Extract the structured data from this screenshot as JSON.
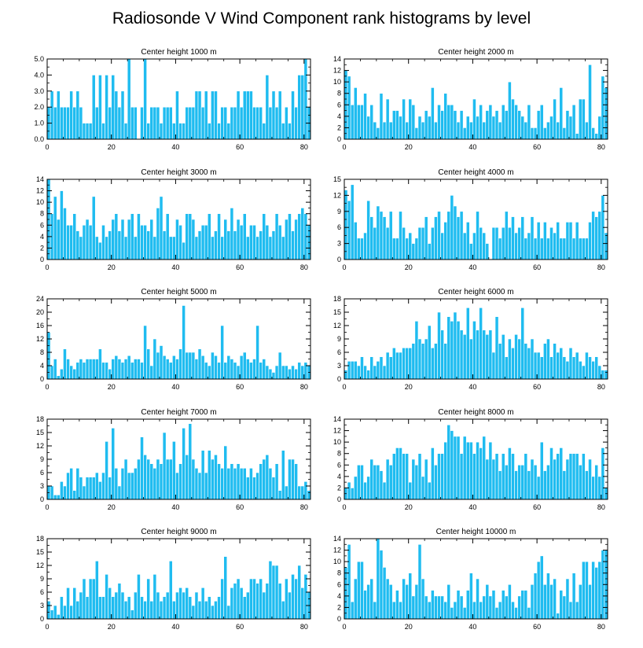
{
  "figure_title": "Radiosonde V Wind Component rank histograms by level",
  "colors": {
    "bar": "#1fbcf0",
    "bar_edge": "#ffffff",
    "axis": "#000000"
  },
  "chart_data": [
    {
      "type": "bar",
      "title": "Center height 1000 m",
      "xlabel": "",
      "ylabel": "",
      "xlim": [
        0,
        82
      ],
      "ylim": [
        0,
        5
      ],
      "xticks": [
        0,
        20,
        40,
        60,
        80
      ],
      "yticks": [
        0,
        1,
        2,
        3,
        4,
        5
      ],
      "ytick_labels": [
        "0.0",
        "1.0",
        "2.0",
        "3.0",
        "4.0",
        "5.0"
      ],
      "values": [
        2,
        3,
        2,
        3,
        2,
        2,
        2,
        3,
        2,
        3,
        2,
        1,
        1,
        1,
        4,
        2,
        4,
        1,
        4,
        2,
        4,
        3,
        2,
        3,
        1,
        5,
        2,
        2,
        0,
        2,
        5,
        1,
        2,
        2,
        2,
        1,
        2,
        2,
        2,
        1,
        3,
        1,
        1,
        2,
        2,
        2,
        3,
        3,
        2,
        3,
        1,
        3,
        3,
        1,
        2,
        2,
        1,
        2,
        2,
        3,
        2,
        3,
        3,
        3,
        2,
        2,
        2,
        1,
        4,
        2,
        3,
        2,
        3,
        1,
        2,
        1,
        3,
        2,
        4,
        4,
        5,
        2
      ]
    },
    {
      "type": "bar",
      "title": "Center height 2000 m",
      "xlabel": "",
      "ylabel": "",
      "xlim": [
        0,
        82
      ],
      "ylim": [
        0,
        14
      ],
      "xticks": [
        0,
        20,
        40,
        60,
        80
      ],
      "yticks": [
        0,
        2,
        4,
        6,
        8,
        10,
        12,
        14
      ],
      "ytick_labels": [
        "0",
        "2",
        "4",
        "6",
        "8",
        "10",
        "12",
        "14"
      ],
      "values": [
        12,
        11,
        6,
        9,
        6,
        6,
        8,
        4,
        6,
        3,
        2,
        8,
        3,
        7,
        3,
        5,
        5,
        4,
        7,
        3,
        7,
        6,
        2,
        4,
        3,
        5,
        4,
        9,
        3,
        6,
        5,
        8,
        6,
        6,
        5,
        3,
        5,
        2,
        4,
        3,
        7,
        4,
        6,
        3,
        5,
        6,
        4,
        5,
        3,
        6,
        5,
        10,
        7,
        6,
        5,
        4,
        3,
        6,
        2,
        2,
        5,
        6,
        2,
        3,
        4,
        7,
        3,
        9,
        2,
        5,
        4,
        6,
        1,
        7,
        7,
        3,
        13,
        2,
        1,
        4,
        11,
        9
      ]
    },
    {
      "type": "bar",
      "title": "Center height 3000 m",
      "xlabel": "",
      "ylabel": "",
      "xlim": [
        0,
        82
      ],
      "ylim": [
        0,
        14
      ],
      "xticks": [
        0,
        20,
        40,
        60,
        80
      ],
      "yticks": [
        0,
        2,
        4,
        6,
        8,
        10,
        12,
        14
      ],
      "ytick_labels": [
        "0",
        "2",
        "4",
        "6",
        "8",
        "10",
        "12",
        "14"
      ],
      "values": [
        14,
        8,
        11,
        7,
        12,
        9,
        6,
        6,
        8,
        5,
        4,
        6,
        7,
        6,
        11,
        4,
        3,
        6,
        4,
        5,
        7,
        8,
        5,
        7,
        4,
        7,
        8,
        4,
        8,
        6,
        6,
        5,
        7,
        4,
        9,
        11,
        5,
        8,
        4,
        4,
        7,
        6,
        3,
        8,
        8,
        7,
        4,
        5,
        6,
        6,
        8,
        4,
        5,
        8,
        4,
        7,
        5,
        9,
        5,
        7,
        6,
        8,
        4,
        6,
        6,
        4,
        5,
        8,
        6,
        4,
        5,
        8,
        6,
        4,
        7,
        8,
        5,
        7,
        8,
        9,
        8,
        6
      ]
    },
    {
      "type": "bar",
      "title": "Center height 4000 m",
      "xlabel": "",
      "ylabel": "",
      "xlim": [
        0,
        82
      ],
      "ylim": [
        0,
        15
      ],
      "xticks": [
        0,
        20,
        40,
        60,
        80
      ],
      "yticks": [
        0,
        3,
        6,
        9,
        12,
        15
      ],
      "ytick_labels": [
        "0",
        "3",
        "6",
        "9",
        "12",
        "15"
      ],
      "values": [
        13,
        11,
        14,
        7,
        4,
        4,
        5,
        11,
        8,
        6,
        10,
        9,
        8,
        6,
        9,
        4,
        4,
        9,
        6,
        4,
        5,
        3,
        4,
        6,
        6,
        8,
        3,
        6,
        8,
        9,
        5,
        7,
        9,
        12,
        10,
        8,
        9,
        5,
        7,
        3,
        5,
        9,
        6,
        5,
        3,
        0,
        6,
        6,
        4,
        6,
        9,
        6,
        8,
        5,
        6,
        8,
        4,
        5,
        8,
        4,
        7,
        4,
        7,
        4,
        6,
        5,
        7,
        4,
        4,
        7,
        7,
        4,
        7,
        4,
        4,
        4,
        7,
        9,
        8,
        9,
        12,
        5
      ]
    },
    {
      "type": "bar",
      "title": "Center height 5000 m",
      "xlabel": "",
      "ylabel": "",
      "xlim": [
        0,
        82
      ],
      "ylim": [
        0,
        24
      ],
      "xticks": [
        0,
        20,
        40,
        60,
        80
      ],
      "yticks": [
        0,
        4,
        8,
        12,
        16,
        20,
        24
      ],
      "ytick_labels": [
        "0",
        "4",
        "8",
        "12",
        "16",
        "20",
        "24"
      ],
      "values": [
        14,
        4,
        6,
        1,
        3,
        9,
        6,
        4,
        3,
        5,
        6,
        5,
        6,
        6,
        6,
        6,
        9,
        5,
        5,
        3,
        6,
        7,
        6,
        5,
        6,
        7,
        5,
        6,
        6,
        5,
        16,
        9,
        4,
        12,
        8,
        10,
        7,
        6,
        5,
        7,
        6,
        9,
        22,
        8,
        8,
        8,
        6,
        9,
        7,
        5,
        4,
        8,
        7,
        5,
        16,
        5,
        7,
        6,
        5,
        4,
        7,
        8,
        6,
        5,
        6,
        16,
        5,
        6,
        4,
        3,
        2,
        4,
        8,
        4,
        4,
        3,
        4,
        3,
        5,
        4,
        5,
        4
      ]
    },
    {
      "type": "bar",
      "title": "Center height 6000 m",
      "xlabel": "",
      "ylabel": "",
      "xlim": [
        0,
        82
      ],
      "ylim": [
        0,
        18
      ],
      "xticks": [
        0,
        20,
        40,
        60,
        80
      ],
      "yticks": [
        0,
        3,
        6,
        9,
        12,
        15,
        18
      ],
      "ytick_labels": [
        "0",
        "3",
        "6",
        "9",
        "12",
        "15",
        "18"
      ],
      "values": [
        2,
        4,
        4,
        4,
        3,
        5,
        3,
        2,
        5,
        3,
        4,
        5,
        3,
        6,
        5,
        7,
        6,
        6,
        7,
        7,
        7,
        8,
        13,
        9,
        8,
        9,
        12,
        7,
        8,
        15,
        11,
        8,
        14,
        13,
        15,
        13,
        11,
        10,
        16,
        9,
        13,
        11,
        16,
        11,
        10,
        11,
        6,
        14,
        8,
        10,
        5,
        9,
        7,
        10,
        9,
        16,
        8,
        7,
        9,
        6,
        6,
        5,
        8,
        9,
        5,
        8,
        6,
        7,
        5,
        4,
        7,
        5,
        6,
        4,
        3,
        6,
        5,
        4,
        5,
        3,
        2,
        2
      ]
    },
    {
      "type": "bar",
      "title": "Center height 7000 m",
      "xlabel": "",
      "ylabel": "",
      "xlim": [
        0,
        82
      ],
      "ylim": [
        0,
        18
      ],
      "xticks": [
        0,
        20,
        40,
        60,
        80
      ],
      "yticks": [
        0,
        3,
        6,
        9,
        12,
        15,
        18
      ],
      "ytick_labels": [
        "0",
        "3",
        "6",
        "9",
        "12",
        "15",
        "18"
      ],
      "values": [
        3,
        3,
        1,
        1,
        4,
        3,
        6,
        7,
        2,
        7,
        5,
        3,
        5,
        5,
        5,
        6,
        4,
        6,
        13,
        5,
        16,
        7,
        3,
        7,
        9,
        6,
        6,
        7,
        9,
        14,
        10,
        9,
        8,
        7,
        9,
        8,
        15,
        9,
        9,
        13,
        6,
        8,
        16,
        10,
        17,
        9,
        7,
        6,
        11,
        6,
        11,
        9,
        10,
        8,
        7,
        12,
        7,
        8,
        7,
        8,
        7,
        7,
        5,
        7,
        5,
        6,
        8,
        9,
        10,
        7,
        5,
        8,
        2,
        11,
        3,
        9,
        9,
        8,
        3,
        3,
        4,
        2
      ]
    },
    {
      "type": "bar",
      "title": "Center height 8000 m",
      "xlabel": "",
      "ylabel": "",
      "xlim": [
        0,
        82
      ],
      "ylim": [
        0,
        14
      ],
      "xticks": [
        0,
        20,
        40,
        60,
        80
      ],
      "yticks": [
        0,
        2,
        4,
        6,
        8,
        10,
        12,
        14
      ],
      "ytick_labels": [
        "0",
        "2",
        "4",
        "6",
        "8",
        "10",
        "12",
        "14"
      ],
      "values": [
        2,
        3,
        2,
        4,
        6,
        6,
        3,
        4,
        7,
        6,
        6,
        5,
        3,
        7,
        6,
        8,
        9,
        9,
        8,
        8,
        3,
        7,
        6,
        8,
        4,
        7,
        3,
        9,
        6,
        8,
        8,
        10,
        13,
        12,
        11,
        11,
        8,
        11,
        10,
        10,
        8,
        10,
        9,
        11,
        7,
        10,
        7,
        8,
        5,
        8,
        6,
        9,
        8,
        5,
        6,
        6,
        8,
        5,
        7,
        6,
        4,
        10,
        5,
        6,
        9,
        7,
        8,
        9,
        5,
        7,
        8,
        8,
        8,
        6,
        8,
        5,
        7,
        4,
        6,
        4,
        9,
        2
      ]
    },
    {
      "type": "bar",
      "title": "Center height 9000 m",
      "xlabel": "",
      "ylabel": "",
      "xlim": [
        0,
        82
      ],
      "ylim": [
        0,
        18
      ],
      "xticks": [
        0,
        20,
        40,
        60,
        80
      ],
      "yticks": [
        0,
        3,
        6,
        9,
        12,
        15,
        18
      ],
      "ytick_labels": [
        "0",
        "3",
        "6",
        "9",
        "12",
        "15",
        "18"
      ],
      "values": [
        4,
        2,
        3,
        1,
        5,
        3,
        7,
        3,
        7,
        4,
        6,
        9,
        5,
        9,
        9,
        13,
        5,
        5,
        10,
        7,
        5,
        6,
        8,
        6,
        4,
        5,
        2,
        6,
        10,
        5,
        4,
        9,
        4,
        10,
        6,
        4,
        5,
        6,
        13,
        4,
        6,
        7,
        6,
        7,
        5,
        3,
        6,
        4,
        7,
        4,
        5,
        3,
        4,
        5,
        9,
        14,
        3,
        7,
        8,
        9,
        7,
        5,
        6,
        9,
        9,
        8,
        9,
        6,
        8,
        13,
        12,
        12,
        8,
        4,
        9,
        6,
        10,
        9,
        12,
        7,
        10,
        6
      ]
    },
    {
      "type": "bar",
      "title": "Center height 10000 m",
      "xlabel": "",
      "ylabel": "",
      "xlim": [
        0,
        82
      ],
      "ylim": [
        0,
        14
      ],
      "xticks": [
        0,
        20,
        40,
        60,
        80
      ],
      "yticks": [
        0,
        2,
        4,
        6,
        8,
        10,
        12,
        14
      ],
      "ytick_labels": [
        "0",
        "2",
        "4",
        "6",
        "8",
        "10",
        "12",
        "14"
      ],
      "values": [
        9,
        13,
        3,
        7,
        10,
        10,
        5,
        6,
        7,
        3,
        14,
        12,
        9,
        7,
        6,
        3,
        5,
        3,
        7,
        6,
        8,
        4,
        6,
        13,
        7,
        4,
        3,
        5,
        4,
        4,
        4,
        3,
        6,
        2,
        3,
        5,
        4,
        2,
        5,
        8,
        3,
        7,
        3,
        4,
        6,
        4,
        5,
        2,
        3,
        5,
        4,
        6,
        3,
        2,
        4,
        5,
        5,
        2,
        6,
        8,
        10,
        11,
        6,
        8,
        6,
        7,
        1,
        5,
        4,
        7,
        3,
        8,
        3,
        6,
        10,
        10,
        6,
        10,
        9,
        10,
        12,
        12
      ]
    }
  ]
}
